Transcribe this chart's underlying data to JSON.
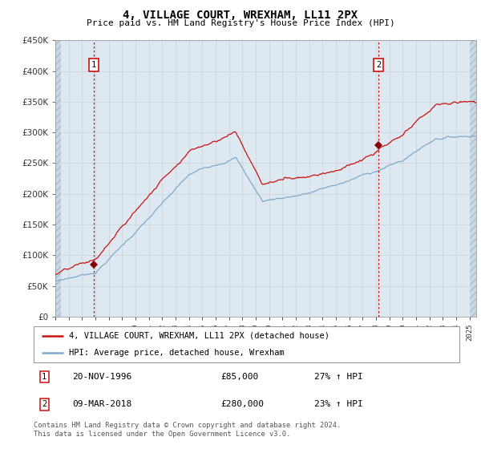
{
  "title": "4, VILLAGE COURT, WREXHAM, LL11 2PX",
  "subtitle": "Price paid vs. HM Land Registry's House Price Index (HPI)",
  "legend_line1": "4, VILLAGE COURT, WREXHAM, LL11 2PX (detached house)",
  "legend_line2": "HPI: Average price, detached house, Wrexham",
  "sale1_date": "20-NOV-1996",
  "sale1_price": "£85,000",
  "sale1_hpi": "27% ↑ HPI",
  "sale1_year": 1996.88,
  "sale1_value": 85000,
  "sale2_date": "09-MAR-2018",
  "sale2_price": "£280,000",
  "sale2_hpi": "23% ↑ HPI",
  "sale2_year": 2018.19,
  "sale2_value": 280000,
  "footer": "Contains HM Land Registry data © Crown copyright and database right 2024.\nThis data is licensed under the Open Government Licence v3.0.",
  "ylim": [
    0,
    450000
  ],
  "xlim_start": 1994.0,
  "xlim_end": 2025.5,
  "hpi_color": "#7faacc",
  "price_color": "#cc1111",
  "marker_color": "#880000",
  "bg_color": "#dde8f0",
  "grid_color": "#bbbbbb",
  "dashed_color": "#cc1111",
  "hatch_bg": "#c8d8e4"
}
